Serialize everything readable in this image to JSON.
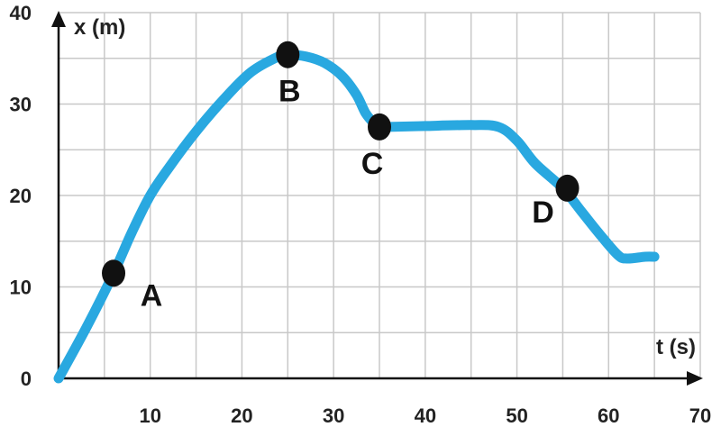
{
  "chart_data": {
    "type": "line",
    "xlabel": "t (s)",
    "ylabel": "x (m)",
    "xlim": [
      0,
      70
    ],
    "ylim": [
      0,
      40
    ],
    "x_ticks": [
      10,
      20,
      30,
      40,
      50,
      60,
      70
    ],
    "y_ticks": [
      0,
      10,
      20,
      30,
      40
    ],
    "grid": true,
    "line_color": "#29a8e0",
    "grid_color": "#c8c8c8",
    "point_color": "#111111",
    "series": [
      {
        "x": [
          0,
          3,
          6,
          8,
          10,
          12,
          15,
          18,
          21,
          24,
          25,
          27,
          29,
          31,
          32.5,
          33.5,
          34.5,
          35,
          36,
          40,
          45,
          48,
          50,
          52,
          55,
          57,
          59,
          61,
          62,
          64,
          65
        ],
        "y": [
          0,
          5.5,
          11.5,
          16,
          20,
          23,
          27,
          30.5,
          33.5,
          35.2,
          35.4,
          35.2,
          34.5,
          33,
          31,
          29,
          27.8,
          27.5,
          27.5,
          27.6,
          27.7,
          27.5,
          26,
          23.5,
          20.8,
          18.3,
          15.8,
          13.5,
          13.1,
          13.3,
          13.3
        ]
      }
    ],
    "points": [
      {
        "label": "A",
        "x": 6,
        "y": 11.5
      },
      {
        "label": "B",
        "x": 25,
        "y": 35.4
      },
      {
        "label": "C",
        "x": 35,
        "y": 27.5
      },
      {
        "label": "D",
        "x": 55.5,
        "y": 20.8
      }
    ]
  }
}
